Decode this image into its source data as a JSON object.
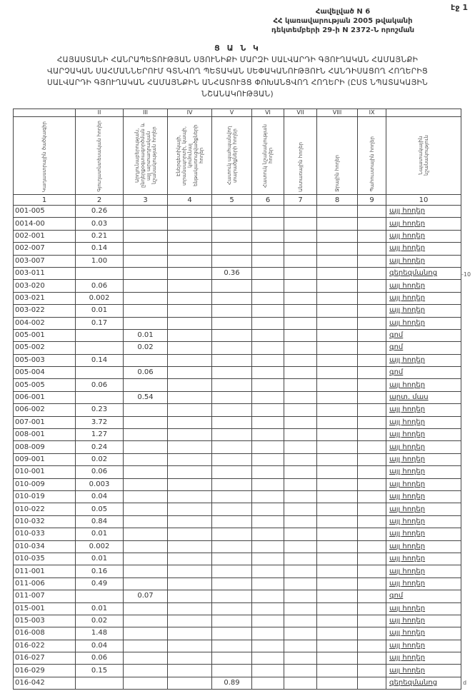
{
  "page_number": "էջ 1",
  "annex": {
    "line1": "Հավելված N 6",
    "line2": "ՀՀ կառավարության 2005 թվականի",
    "line3": "դեկտեմբերի 29-ի N 2372-Ն որոշման"
  },
  "title": {
    "heading": "Ց Ա Ն Կ",
    "line1": "ՀԱՅԱՍՏԱՆԻ ՀԱՆՐԱՊԵՏՈՒԹՅԱՆ ՍՅՈՒՆԻՔԻ ՄԱՐԶԻ ՍԱԼՎԱՐԴԻ ԳՅՈՒՂԱԿԱՆ ՀԱՄԱՅՆՔԻ",
    "line2": "ՎԱՐՉԱԿԱՆ ՍԱՀՄԱՆՆԵՐՈՒՄ ԳՏՆՎՈՂ ՊԵՏԱԿԱՆ ՍԵՓԱԿԱՆՈՒԹՅՈՒՆ ՀԱՆԴԻՍԱՑՈՂ ՀՈՂԵՐԻՑ",
    "line3": "ՍԱԼՎԱՐԴԻ ԳՅՈՒՂԱԿԱՆ ՀԱՄԱՅՆՔԻՆ ԱՆՀԱՏՈՒՅՑ ՓՈԽԱՆՑՎՈՂ ՀՈՂԵՐԻ (ԸՍՏ ՆՊԱՏԱԿԱՅԻՆ",
    "line4": "ՆՇԱՆԱԿՈՒԹՅԱՆ)"
  },
  "table": {
    "roman": [
      "",
      "II",
      "III",
      "IV",
      "V",
      "VI",
      "VII",
      "VIII",
      "IX",
      ""
    ],
    "headers": [
      "Կադաստրային ծածկագիր",
      "Գյուղատնտեսական հողեր",
      "Արդյունաբերության, ընդերքօգտագործման և այլ արտադրական նշանակության հողեր",
      "Էներգետիկայի, տրանսպորտի, կապի, կոմունալ ենթակառուցվածքների հողեր",
      "Հատուկ պահպանվող տարածքների հողեր",
      "Հատուկ նշանակության հողեր",
      "Անտառային հողեր",
      "Ջրային հողեր",
      "Պահուստային հողեր",
      "Նպատակային նշանակություն"
    ],
    "numbers": [
      "1",
      "2",
      "3",
      "4",
      "5",
      "6",
      "7",
      "8",
      "9",
      "10"
    ],
    "rows": [
      {
        "code": "001-005",
        "col": 2,
        "value": "0.26",
        "note": "այլ հողեր"
      },
      {
        "code": "0014-00",
        "col": 2,
        "value": "0.03",
        "note": "այլ հողեր"
      },
      {
        "code": "002-001",
        "col": 2,
        "value": "0.21",
        "note": "այլ հողեր"
      },
      {
        "code": "002-007",
        "col": 2,
        "value": "0.14",
        "note": "այլ հողեր"
      },
      {
        "code": "003-007",
        "col": 2,
        "value": "1.00",
        "note": "այլ հողեր"
      },
      {
        "code": "003-011",
        "col": 5,
        "value": "0.36",
        "note": "գերեզմանոց"
      },
      {
        "code": "003-020",
        "col": 2,
        "value": "0.06",
        "note": "այլ հողեր"
      },
      {
        "code": "003-021",
        "col": 2,
        "value": "0.002",
        "note": "այլ հողեր"
      },
      {
        "code": "003-022",
        "col": 2,
        "value": "0.01",
        "note": "այլ հողեր"
      },
      {
        "code": "004-002",
        "col": 2,
        "value": "0.17",
        "note": "այլ հողեր"
      },
      {
        "code": "005-001",
        "col": 3,
        "value": "0.01",
        "note": "գոմ"
      },
      {
        "code": "005-002",
        "col": 3,
        "value": "0.02",
        "note": "գոմ"
      },
      {
        "code": "005-003",
        "col": 2,
        "value": "0.14",
        "note": "այլ հողեր"
      },
      {
        "code": "005-004",
        "col": 3,
        "value": "0.06",
        "note": "գոմ"
      },
      {
        "code": "005-005",
        "col": 2,
        "value": "0.06",
        "note": "այլ հողեր"
      },
      {
        "code": "006-001",
        "col": 3,
        "value": "0.54",
        "note": "արտ. մաս"
      },
      {
        "code": "006-002",
        "col": 2,
        "value": "0.23",
        "note": "այլ հողեր"
      },
      {
        "code": "007-001",
        "col": 2,
        "value": "3.72",
        "note": "այլ հողեր"
      },
      {
        "code": "008-001",
        "col": 2,
        "value": "1.27",
        "note": "այլ հողեր"
      },
      {
        "code": "008-009",
        "col": 2,
        "value": "0.24",
        "note": "այլ հողեր"
      },
      {
        "code": "009-001",
        "col": 2,
        "value": "0.02",
        "note": "այլ հողեր"
      },
      {
        "code": "010-001",
        "col": 2,
        "value": "0.06",
        "note": "այլ հողեր"
      },
      {
        "code": "010-009",
        "col": 2,
        "value": "0.003",
        "note": "այլ հողեր"
      },
      {
        "code": "010-019",
        "col": 2,
        "value": "0.04",
        "note": "այլ հողեր"
      },
      {
        "code": "010-022",
        "col": 2,
        "value": "0.05",
        "note": "այլ հողեր"
      },
      {
        "code": "010-032",
        "col": 2,
        "value": "0.84",
        "note": "այլ հողեր"
      },
      {
        "code": "010-033",
        "col": 2,
        "value": "0.01",
        "note": "այլ հողեր"
      },
      {
        "code": "010-034",
        "col": 2,
        "value": "0.002",
        "note": "այլ հողեր"
      },
      {
        "code": "010-035",
        "col": 2,
        "value": "0.01",
        "note": "այլ հողեր"
      },
      {
        "code": "011-001",
        "col": 2,
        "value": "0.16",
        "note": "այլ հողեր"
      },
      {
        "code": "011-006",
        "col": 2,
        "value": "0.49",
        "note": "այլ հողեր"
      },
      {
        "code": "011-007",
        "col": 3,
        "value": "0.07",
        "note": "գոմ"
      },
      {
        "code": "015-001",
        "col": 2,
        "value": "0.01",
        "note": "այլ հողեր"
      },
      {
        "code": "015-003",
        "col": 2,
        "value": "0.02",
        "note": "այլ հողեր"
      },
      {
        "code": "016-008",
        "col": 2,
        "value": "1.48",
        "note": "այլ հողեր"
      },
      {
        "code": "016-022",
        "col": 2,
        "value": "0.04",
        "note": "այլ հողեր"
      },
      {
        "code": "016-027",
        "col": 2,
        "value": "0.06",
        "note": "այլ հողեր"
      },
      {
        "code": "016-029",
        "col": 2,
        "value": "0.15",
        "note": "այլ հողեր"
      },
      {
        "code": "016-042",
        "col": 5,
        "value": "0.89",
        "note": "գերեզմանոց"
      }
    ]
  },
  "margin_marks": [
    "-10",
    "d"
  ]
}
